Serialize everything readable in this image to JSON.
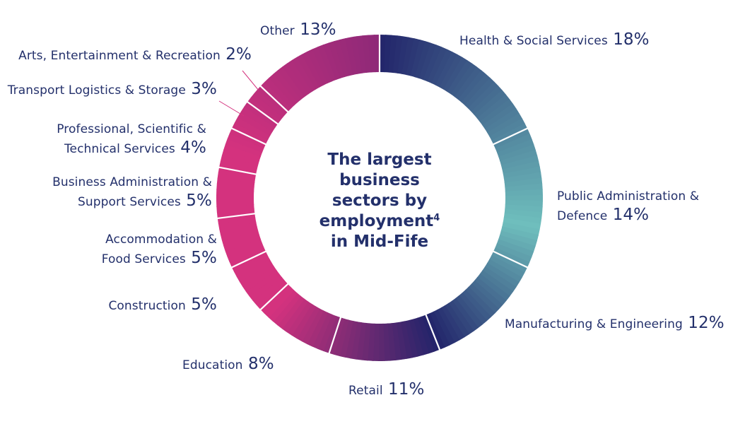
{
  "chart_data": {
    "type": "pie",
    "style": "donut",
    "title_lines": [
      "The largest",
      "business",
      "sectors by",
      "employment",
      "in Mid-Fife"
    ],
    "title_superscript": "4",
    "unit": "%",
    "colors": {
      "navy": "#22246a",
      "teal": "#6fbfbd",
      "magenta": "#d4327e",
      "purple": "#8e2978",
      "label": "#23306b"
    },
    "slices": [
      {
        "name": "Health & Social Services",
        "value": 18,
        "lines": [
          "Health & Social Services"
        ],
        "pct_text": "18%"
      },
      {
        "name": "Public Administration & Defence",
        "value": 14,
        "lines": [
          "Public Administration &",
          "Defence"
        ],
        "pct_text": "14%"
      },
      {
        "name": "Manufacturing & Engineering",
        "value": 12,
        "lines": [
          "Manufacturing & Engineering"
        ],
        "pct_text": "12%"
      },
      {
        "name": "Retail",
        "value": 11,
        "lines": [
          "Retail"
        ],
        "pct_text": "11%"
      },
      {
        "name": "Education",
        "value": 8,
        "lines": [
          "Education"
        ],
        "pct_text": "8%"
      },
      {
        "name": "Construction",
        "value": 5,
        "lines": [
          "Construction"
        ],
        "pct_text": "5%"
      },
      {
        "name": "Accommodation & Food Services",
        "value": 5,
        "lines": [
          "Accommodation &",
          "Food Services"
        ],
        "pct_text": "5%"
      },
      {
        "name": "Business Administration & Support Services",
        "value": 5,
        "lines": [
          "Business Administration &",
          "Support Services"
        ],
        "pct_text": "5%"
      },
      {
        "name": "Professional, Scientific & Technical Services",
        "value": 4,
        "lines": [
          "Professional, Scientific &",
          "Technical Services"
        ],
        "pct_text": "4%"
      },
      {
        "name": "Transport Logistics & Storage",
        "value": 3,
        "lines": [
          "Transport Logistics & Storage"
        ],
        "pct_text": "3%"
      },
      {
        "name": "Arts, Entertainment & Recreation",
        "value": 2,
        "lines": [
          "Arts, Entertainment & Recreation"
        ],
        "pct_text": "2%"
      },
      {
        "name": "Other",
        "value": 13,
        "lines": [
          "Other"
        ],
        "pct_text": "13%"
      }
    ]
  }
}
